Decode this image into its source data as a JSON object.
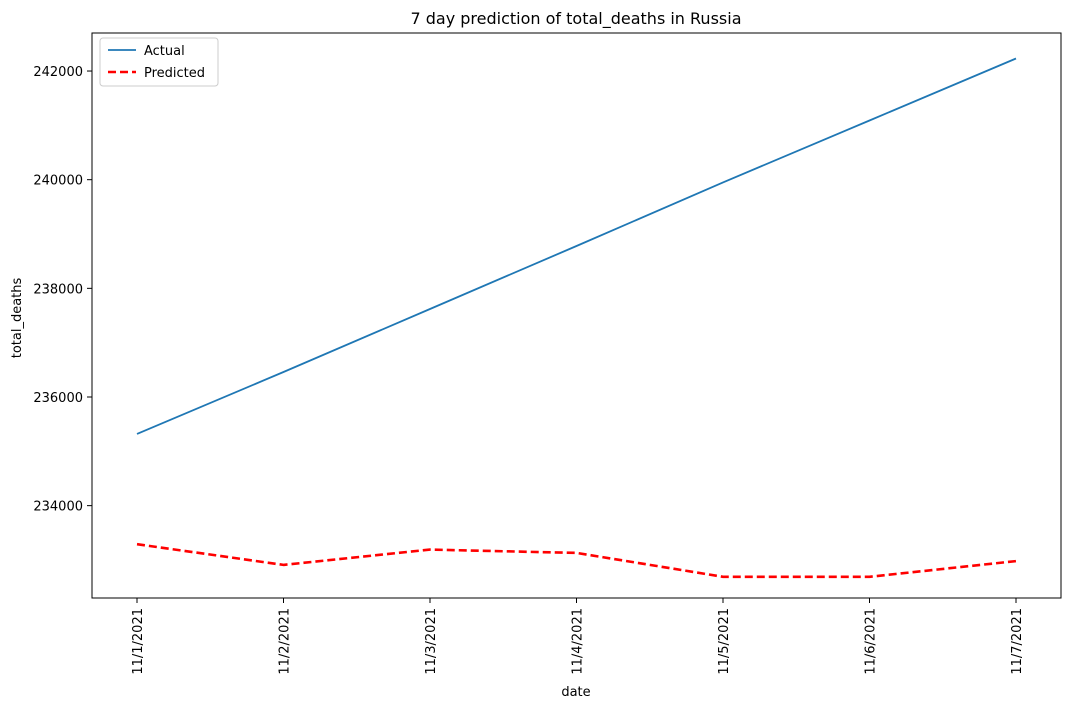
{
  "chart_data": {
    "type": "line",
    "title": "7 day prediction of total_deaths in Russia",
    "xlabel": "date",
    "ylabel": "total_deaths",
    "categories": [
      "11/1/2021",
      "11/2/2021",
      "11/3/2021",
      "11/4/2021",
      "11/5/2021",
      "11/6/2021",
      "11/7/2021"
    ],
    "ylim": [
      232300,
      242700
    ],
    "yticks": [
      234000,
      236000,
      238000,
      240000,
      242000
    ],
    "grid": false,
    "legend_position": "top-left",
    "series": [
      {
        "name": "Actual",
        "color": "#1f77b4",
        "style": "solid",
        "values": [
          235320,
          236460,
          237620,
          238780,
          239950,
          241090,
          242230
        ]
      },
      {
        "name": "Predicted",
        "color": "#ff0000",
        "style": "dashed",
        "values": [
          233290,
          232910,
          233190,
          233130,
          232690,
          232690,
          232980
        ]
      }
    ]
  }
}
